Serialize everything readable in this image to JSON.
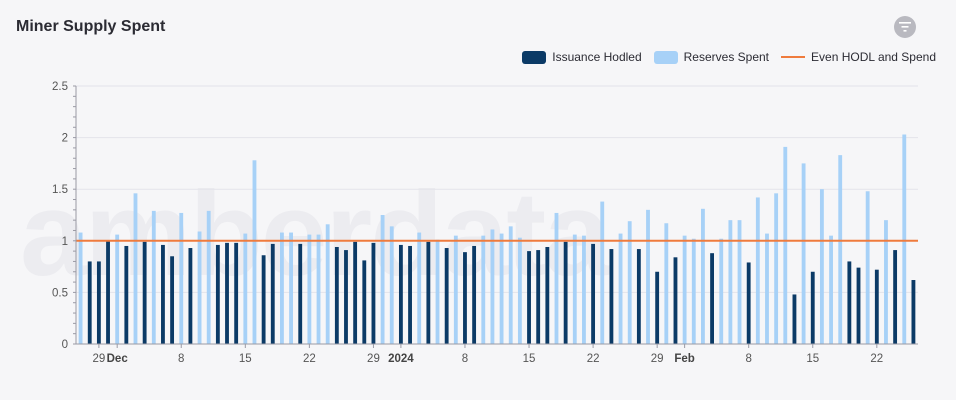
{
  "header": {
    "title": "Miner Supply Spent"
  },
  "filter": {
    "icon": "filter-icon"
  },
  "watermark": {
    "text": "amberdata"
  },
  "colors": {
    "hodled": "#0b3a66",
    "spent": "#a7d1f7",
    "even": "#ef7b3d",
    "grid": "#e3e3ea",
    "axis": "#9a9aa5"
  },
  "legend": [
    {
      "label": "Issuance Hodled",
      "color": "#0b3a66",
      "kind": "box"
    },
    {
      "label": "Reserves Spent",
      "color": "#a7d1f7",
      "kind": "box"
    },
    {
      "label": "Even HODL and Spend",
      "color": "#ef7b3d",
      "kind": "line"
    }
  ],
  "chart_data": {
    "type": "bar",
    "y_ticks": [
      "0",
      "0.5",
      "1",
      "1.5",
      "2",
      "2.5"
    ],
    "ylim": [
      0,
      2.5
    ],
    "reference_line": {
      "name": "Even HODL and Spend",
      "value": 1.0
    },
    "x_range": [
      "2023-11-27",
      "2024-02-26"
    ],
    "x_ticks": [
      {
        "date": "2023-11-29",
        "label": "29",
        "bold": false
      },
      {
        "date": "2023-12-01",
        "label": "Dec",
        "bold": true
      },
      {
        "date": "2023-12-08",
        "label": "8",
        "bold": false
      },
      {
        "date": "2023-12-15",
        "label": "15",
        "bold": false
      },
      {
        "date": "2023-12-22",
        "label": "22",
        "bold": false
      },
      {
        "date": "2023-12-29",
        "label": "29",
        "bold": false
      },
      {
        "date": "2024-01-01",
        "label": "2024",
        "bold": true
      },
      {
        "date": "2024-01-08",
        "label": "8",
        "bold": false
      },
      {
        "date": "2024-01-15",
        "label": "15",
        "bold": false
      },
      {
        "date": "2024-01-22",
        "label": "22",
        "bold": false
      },
      {
        "date": "2024-01-29",
        "label": "29",
        "bold": false
      },
      {
        "date": "2024-02-01",
        "label": "Feb",
        "bold": true
      },
      {
        "date": "2024-02-08",
        "label": "8",
        "bold": false
      },
      {
        "date": "2024-02-15",
        "label": "15",
        "bold": false
      },
      {
        "date": "2024-02-22",
        "label": "22",
        "bold": false
      }
    ],
    "points": [
      {
        "date": "2023-11-27",
        "series": "Reserves Spent",
        "value": 1.08
      },
      {
        "date": "2023-11-28",
        "series": "Issuance Hodled",
        "value": 0.8
      },
      {
        "date": "2023-11-29",
        "series": "Issuance Hodled",
        "value": 0.8
      },
      {
        "date": "2023-11-30",
        "series": "Issuance Hodled",
        "value": 1.0
      },
      {
        "date": "2023-12-01",
        "series": "Reserves Spent",
        "value": 1.06
      },
      {
        "date": "2023-12-02",
        "series": "Issuance Hodled",
        "value": 0.95
      },
      {
        "date": "2023-12-03",
        "series": "Reserves Spent",
        "value": 1.46
      },
      {
        "date": "2023-12-04",
        "series": "Issuance Hodled",
        "value": 0.99
      },
      {
        "date": "2023-12-05",
        "series": "Reserves Spent",
        "value": 1.29
      },
      {
        "date": "2023-12-06",
        "series": "Issuance Hodled",
        "value": 0.96
      },
      {
        "date": "2023-12-07",
        "series": "Issuance Hodled",
        "value": 0.85
      },
      {
        "date": "2023-12-08",
        "series": "Reserves Spent",
        "value": 1.27
      },
      {
        "date": "2023-12-09",
        "series": "Issuance Hodled",
        "value": 0.93
      },
      {
        "date": "2023-12-10",
        "series": "Reserves Spent",
        "value": 1.09
      },
      {
        "date": "2023-12-11",
        "series": "Reserves Spent",
        "value": 1.29
      },
      {
        "date": "2023-12-12",
        "series": "Issuance Hodled",
        "value": 0.96
      },
      {
        "date": "2023-12-13",
        "series": "Issuance Hodled",
        "value": 0.98
      },
      {
        "date": "2023-12-14",
        "series": "Issuance Hodled",
        "value": 0.98
      },
      {
        "date": "2023-12-15",
        "series": "Reserves Spent",
        "value": 1.07
      },
      {
        "date": "2023-12-16",
        "series": "Reserves Spent",
        "value": 1.78
      },
      {
        "date": "2023-12-17",
        "series": "Issuance Hodled",
        "value": 0.86
      },
      {
        "date": "2023-12-18",
        "series": "Issuance Hodled",
        "value": 0.97
      },
      {
        "date": "2023-12-19",
        "series": "Reserves Spent",
        "value": 1.08
      },
      {
        "date": "2023-12-20",
        "series": "Reserves Spent",
        "value": 1.08
      },
      {
        "date": "2023-12-21",
        "series": "Issuance Hodled",
        "value": 0.97
      },
      {
        "date": "2023-12-22",
        "series": "Reserves Spent",
        "value": 1.06
      },
      {
        "date": "2023-12-23",
        "series": "Reserves Spent",
        "value": 1.06
      },
      {
        "date": "2023-12-24",
        "series": "Reserves Spent",
        "value": 1.16
      },
      {
        "date": "2023-12-25",
        "series": "Issuance Hodled",
        "value": 0.94
      },
      {
        "date": "2023-12-26",
        "series": "Issuance Hodled",
        "value": 0.91
      },
      {
        "date": "2023-12-27",
        "series": "Issuance Hodled",
        "value": 0.99
      },
      {
        "date": "2023-12-28",
        "series": "Issuance Hodled",
        "value": 0.81
      },
      {
        "date": "2023-12-29",
        "series": "Issuance Hodled",
        "value": 0.98
      },
      {
        "date": "2023-12-30",
        "series": "Reserves Spent",
        "value": 1.25
      },
      {
        "date": "2023-12-31",
        "series": "Reserves Spent",
        "value": 1.14
      },
      {
        "date": "2024-01-01",
        "series": "Issuance Hodled",
        "value": 0.96
      },
      {
        "date": "2024-01-02",
        "series": "Issuance Hodled",
        "value": 0.95
      },
      {
        "date": "2024-01-03",
        "series": "Reserves Spent",
        "value": 1.08
      },
      {
        "date": "2024-01-04",
        "series": "Issuance Hodled",
        "value": 0.99
      },
      {
        "date": "2024-01-05",
        "series": "Reserves Spent",
        "value": 1.01
      },
      {
        "date": "2024-01-06",
        "series": "Issuance Hodled",
        "value": 0.93
      },
      {
        "date": "2024-01-07",
        "series": "Reserves Spent",
        "value": 1.05
      },
      {
        "date": "2024-01-08",
        "series": "Issuance Hodled",
        "value": 0.89
      },
      {
        "date": "2024-01-09",
        "series": "Issuance Hodled",
        "value": 0.95
      },
      {
        "date": "2024-01-10",
        "series": "Reserves Spent",
        "value": 1.05
      },
      {
        "date": "2024-01-11",
        "series": "Reserves Spent",
        "value": 1.11
      },
      {
        "date": "2024-01-12",
        "series": "Reserves Spent",
        "value": 1.07
      },
      {
        "date": "2024-01-13",
        "series": "Reserves Spent",
        "value": 1.14
      },
      {
        "date": "2024-01-14",
        "series": "Reserves Spent",
        "value": 1.03
      },
      {
        "date": "2024-01-15",
        "series": "Issuance Hodled",
        "value": 0.9
      },
      {
        "date": "2024-01-16",
        "series": "Issuance Hodled",
        "value": 0.91
      },
      {
        "date": "2024-01-17",
        "series": "Issuance Hodled",
        "value": 0.94
      },
      {
        "date": "2024-01-18",
        "series": "Reserves Spent",
        "value": 1.27
      },
      {
        "date": "2024-01-19",
        "series": "Issuance Hodled",
        "value": 0.99
      },
      {
        "date": "2024-01-20",
        "series": "Reserves Spent",
        "value": 1.06
      },
      {
        "date": "2024-01-21",
        "series": "Reserves Spent",
        "value": 1.05
      },
      {
        "date": "2024-01-22",
        "series": "Issuance Hodled",
        "value": 0.97
      },
      {
        "date": "2024-01-23",
        "series": "Reserves Spent",
        "value": 1.38
      },
      {
        "date": "2024-01-24",
        "series": "Issuance Hodled",
        "value": 0.92
      },
      {
        "date": "2024-01-25",
        "series": "Reserves Spent",
        "value": 1.07
      },
      {
        "date": "2024-01-26",
        "series": "Reserves Spent",
        "value": 1.19
      },
      {
        "date": "2024-01-27",
        "series": "Issuance Hodled",
        "value": 0.92
      },
      {
        "date": "2024-01-28",
        "series": "Reserves Spent",
        "value": 1.3
      },
      {
        "date": "2024-01-29",
        "series": "Issuance Hodled",
        "value": 0.7
      },
      {
        "date": "2024-01-30",
        "series": "Reserves Spent",
        "value": 1.17
      },
      {
        "date": "2024-01-31",
        "series": "Issuance Hodled",
        "value": 0.84
      },
      {
        "date": "2024-02-01",
        "series": "Reserves Spent",
        "value": 1.05
      },
      {
        "date": "2024-02-02",
        "series": "Reserves Spent",
        "value": 1.02
      },
      {
        "date": "2024-02-03",
        "series": "Reserves Spent",
        "value": 1.31
      },
      {
        "date": "2024-02-04",
        "series": "Issuance Hodled",
        "value": 0.88
      },
      {
        "date": "2024-02-05",
        "series": "Reserves Spent",
        "value": 1.02
      },
      {
        "date": "2024-02-06",
        "series": "Reserves Spent",
        "value": 1.2
      },
      {
        "date": "2024-02-07",
        "series": "Reserves Spent",
        "value": 1.2
      },
      {
        "date": "2024-02-08",
        "series": "Issuance Hodled",
        "value": 0.79
      },
      {
        "date": "2024-02-09",
        "series": "Reserves Spent",
        "value": 1.42
      },
      {
        "date": "2024-02-10",
        "series": "Reserves Spent",
        "value": 1.07
      },
      {
        "date": "2024-02-11",
        "series": "Reserves Spent",
        "value": 1.46
      },
      {
        "date": "2024-02-12",
        "series": "Reserves Spent",
        "value": 1.91
      },
      {
        "date": "2024-02-13",
        "series": "Issuance Hodled",
        "value": 0.48
      },
      {
        "date": "2024-02-14",
        "series": "Reserves Spent",
        "value": 1.75
      },
      {
        "date": "2024-02-15",
        "series": "Issuance Hodled",
        "value": 0.7
      },
      {
        "date": "2024-02-16",
        "series": "Reserves Spent",
        "value": 1.5
      },
      {
        "date": "2024-02-17",
        "series": "Reserves Spent",
        "value": 1.05
      },
      {
        "date": "2024-02-18",
        "series": "Reserves Spent",
        "value": 1.83
      },
      {
        "date": "2024-02-19",
        "series": "Issuance Hodled",
        "value": 0.8
      },
      {
        "date": "2024-02-20",
        "series": "Issuance Hodled",
        "value": 0.74
      },
      {
        "date": "2024-02-21",
        "series": "Reserves Spent",
        "value": 1.48
      },
      {
        "date": "2024-02-22",
        "series": "Issuance Hodled",
        "value": 0.72
      },
      {
        "date": "2024-02-23",
        "series": "Reserves Spent",
        "value": 1.2
      },
      {
        "date": "2024-02-24",
        "series": "Issuance Hodled",
        "value": 0.91
      },
      {
        "date": "2024-02-25",
        "series": "Reserves Spent",
        "value": 2.03
      },
      {
        "date": "2024-02-26",
        "series": "Issuance Hodled",
        "value": 0.62
      }
    ]
  }
}
